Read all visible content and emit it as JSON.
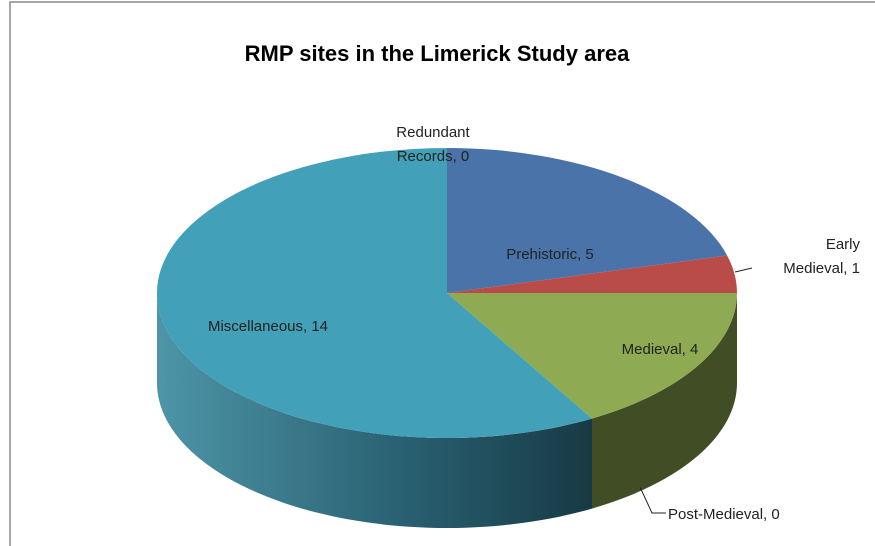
{
  "chart_data": {
    "type": "pie3d",
    "title": "RMP sites in the Limerick Study area",
    "values": [
      5,
      1,
      4,
      0,
      14,
      0
    ],
    "value_labels": [
      "Prehistoric, 5",
      "Early Medieval, 1",
      "Medieval, 4",
      "Post-Medieval, 0",
      "Miscellaneous, 14",
      "Redundant Records, 0"
    ],
    "colors": [
      "#4a73aa",
      "#b94b48",
      "#8eaa52",
      "#7e5fa0",
      "#43a0b9",
      "#e28a3a"
    ]
  }
}
